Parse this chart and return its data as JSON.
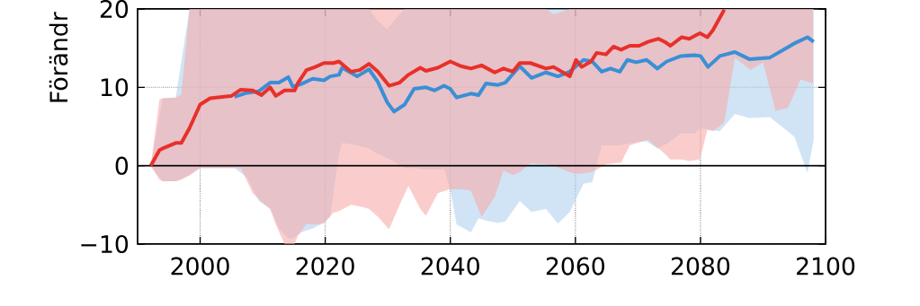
{
  "chart_data": {
    "type": "line",
    "ylabel": "Förändr",
    "xlim": [
      1990,
      2100
    ],
    "xticks": [
      2000,
      2020,
      2040,
      2060,
      2080,
      2100
    ],
    "ylim": [
      -10,
      20
    ],
    "yticks": [
      {
        "value": -10,
        "label": "−10"
      },
      0,
      10,
      20
    ],
    "grid": true,
    "ref_lines": [
      {
        "axis": "y",
        "value": 0,
        "color": "#000000"
      }
    ],
    "series": [
      {
        "color": "#3a8fd6",
        "x": [
          1992.1,
          1994,
          1996.1,
          1998.3,
          2000,
          2003,
          2005.5,
          2007.5,
          2009.4,
          2011.2,
          2012.6,
          2014.1,
          2014.8,
          2016.1,
          2018,
          2019.8,
          2020.8,
          2022.2,
          2022.7,
          2025.1,
          2027,
          2028.4,
          2029.9,
          2031,
          2032.7,
          2034.2,
          2036.1,
          2037.5,
          2039,
          2040,
          2041,
          2043.3,
          2044.5,
          2045.7,
          2047.6,
          2048.8,
          2051.1,
          2053,
          2055.3,
          2057.2,
          2059.1,
          2061.3,
          2062.7,
          2064.2,
          2065.6,
          2067.1,
          2068.3,
          2069.7,
          2071.4,
          2073.1,
          2074.6,
          2076.9,
          2079.1,
          2080,
          2081.2,
          2083.1,
          2085.5,
          2087.8,
          2091.1,
          2095,
          2097.1,
          2098.1
        ],
        "values": [
          null,
          null,
          null,
          null,
          null,
          null,
          8.8,
          9.3,
          9.5,
          10.6,
          10.6,
          11.3,
          10.1,
          10.4,
          11.1,
          10.9,
          11.4,
          11.6,
          12.5,
          11.4,
          12.3,
          10.7,
          8.1,
          6.9,
          7.8,
          9.8,
          10.0,
          9.6,
          10.2,
          9.8,
          8.7,
          9.2,
          9.0,
          10.5,
          10.3,
          10.6,
          12.7,
          11.2,
          11.9,
          11.4,
          12.0,
          13.5,
          13.3,
          12.0,
          12.4,
          12.0,
          13.5,
          13.2,
          13.5,
          12.4,
          13.3,
          14.0,
          14.1,
          14.0,
          12.6,
          14.0,
          14.5,
          13.6,
          13.8,
          15.6,
          16.4,
          15.8
        ],
        "lower": [
          0,
          -2.0,
          -2.0,
          -1.2,
          -0.3,
          -0.3,
          -0.3,
          -1.5,
          -4.5,
          -5.5,
          -8.0,
          -9.3,
          -9.3,
          -8.5,
          -8.0,
          -7.3,
          -6.5,
          1.5,
          2.9,
          2.6,
          2.2,
          1.5,
          1.0,
          0.5,
          -0.3,
          -0.3,
          -0.5,
          -0.5,
          -0.4,
          -3.0,
          -7.5,
          -8.5,
          -6.7,
          -7.0,
          -7.3,
          -7.1,
          -4.5,
          -5.9,
          -5.5,
          -7.4,
          -5.9,
          -2.3,
          -2.1,
          2.6,
          2.6,
          2.6,
          2.8,
          3.0,
          3.1,
          2.2,
          2.8,
          4.1,
          4.1,
          4.8,
          4.6,
          4.4,
          6.6,
          6.1,
          6.2,
          3.7,
          -0.9,
          3.3
        ],
        "upper": [
          0,
          8.6,
          8.7,
          20,
          20,
          20,
          20,
          20,
          20,
          20,
          20,
          20,
          20,
          20,
          20,
          20,
          20,
          20,
          20,
          20,
          20,
          18.5,
          17.4,
          18.5,
          20,
          20,
          20,
          20,
          20,
          20,
          20,
          20,
          20,
          20,
          20,
          20,
          20,
          20,
          20,
          20,
          20,
          20,
          20,
          20,
          20,
          20,
          20,
          20,
          20,
          20,
          20,
          20,
          20,
          20,
          20,
          20,
          20,
          20,
          20,
          20,
          20,
          20
        ]
      },
      {
        "color": "#e8302a",
        "x": [
          1992.1,
          1993.5,
          1994,
          1996.1,
          1997,
          1998.3,
          2000,
          2001.6,
          2005,
          2006.5,
          2008.4,
          2009.8,
          2011.2,
          2012.1,
          2013.5,
          2015.1,
          2015.6,
          2017,
          2018.4,
          2019.8,
          2021.3,
          2022.2,
          2024.1,
          2025.5,
          2027,
          2028.4,
          2030.2,
          2031.9,
          2033.3,
          2035.2,
          2036.1,
          2038,
          2040,
          2041.7,
          2043.3,
          2045,
          2047.1,
          2048.5,
          2050,
          2051.1,
          2052.8,
          2055.3,
          2056.5,
          2059.1,
          2060.1,
          2061,
          2062.5,
          2063.4,
          2064.9,
          2066.1,
          2067.3,
          2068.7,
          2070.2,
          2071.6,
          2073.3,
          2074.3,
          2075.2,
          2077,
          2078.2,
          2079.9,
          2081.1,
          2082,
          2083.8,
          2085.5,
          2088,
          2090,
          2092,
          2094,
          2096,
          2098
        ],
        "values": [
          0,
          2.0,
          2.2,
          2.9,
          2.9,
          4.8,
          7.8,
          8.6,
          8.9,
          9.7,
          9.6,
          9.0,
          10.0,
          8.9,
          9.6,
          9.6,
          10.5,
          12.2,
          12.6,
          13.1,
          13.1,
          13.3,
          12.0,
          12.2,
          13.0,
          12.0,
          10.2,
          10.6,
          11.6,
          12.5,
          12.1,
          12.5,
          13.3,
          12.7,
          12.4,
          12.8,
          11.9,
          12.4,
          12.0,
          13.1,
          13.1,
          12.4,
          12.6,
          11.4,
          13.5,
          12.6,
          13.3,
          14.4,
          14.2,
          15.2,
          14.8,
          15.3,
          15.3,
          15.8,
          16.2,
          15.8,
          15.3,
          16.4,
          16.2,
          16.9,
          16.4,
          17.3,
          19.9,
          null,
          null,
          null,
          null,
          null,
          null,
          null
        ],
        "lower": [
          0,
          -1.8,
          -2.0,
          -2.0,
          -1.8,
          -1.2,
          -0.3,
          -0.3,
          -0.3,
          -0.3,
          -3.5,
          -4.6,
          -5.5,
          -7.5,
          -10,
          -10,
          -9.0,
          -7.4,
          -7.5,
          -7.3,
          -6.0,
          -5.8,
          -5.0,
          -5.2,
          -5.5,
          -6.5,
          -8.1,
          -5.0,
          -2.6,
          -5.5,
          -6.4,
          -3.5,
          -3.0,
          -3.0,
          -3.2,
          -6.5,
          -4.0,
          -0.6,
          -1.2,
          -0.8,
          0.3,
          0.2,
          0,
          -0.8,
          -1.0,
          -1.0,
          -0.8,
          -0.5,
          0.2,
          0.3,
          0.4,
          2.6,
          3.0,
          3.3,
          2.2,
          1.5,
          0.8,
          0.8,
          0.6,
          0.8,
          4.6,
          4.4,
          5.5,
          13.8,
          12.2,
          13.2,
          7.0,
          7.4,
          11.0,
          10.5
        ],
        "upper": [
          0,
          8.5,
          8.6,
          8.7,
          9.1,
          20,
          20,
          20,
          20,
          20,
          20,
          20,
          20,
          20,
          20,
          20,
          20,
          20,
          20,
          20,
          20,
          20,
          20,
          20,
          20,
          20,
          20,
          20,
          20,
          20,
          20,
          20,
          20,
          20,
          20,
          20,
          20,
          20,
          20,
          20,
          20,
          20,
          19.3,
          20,
          20,
          20,
          20,
          20,
          20,
          20,
          20,
          20,
          20,
          20,
          20,
          20,
          20,
          20,
          20,
          20,
          20,
          20,
          20,
          20,
          20,
          20,
          20,
          20,
          20,
          20
        ]
      }
    ]
  }
}
